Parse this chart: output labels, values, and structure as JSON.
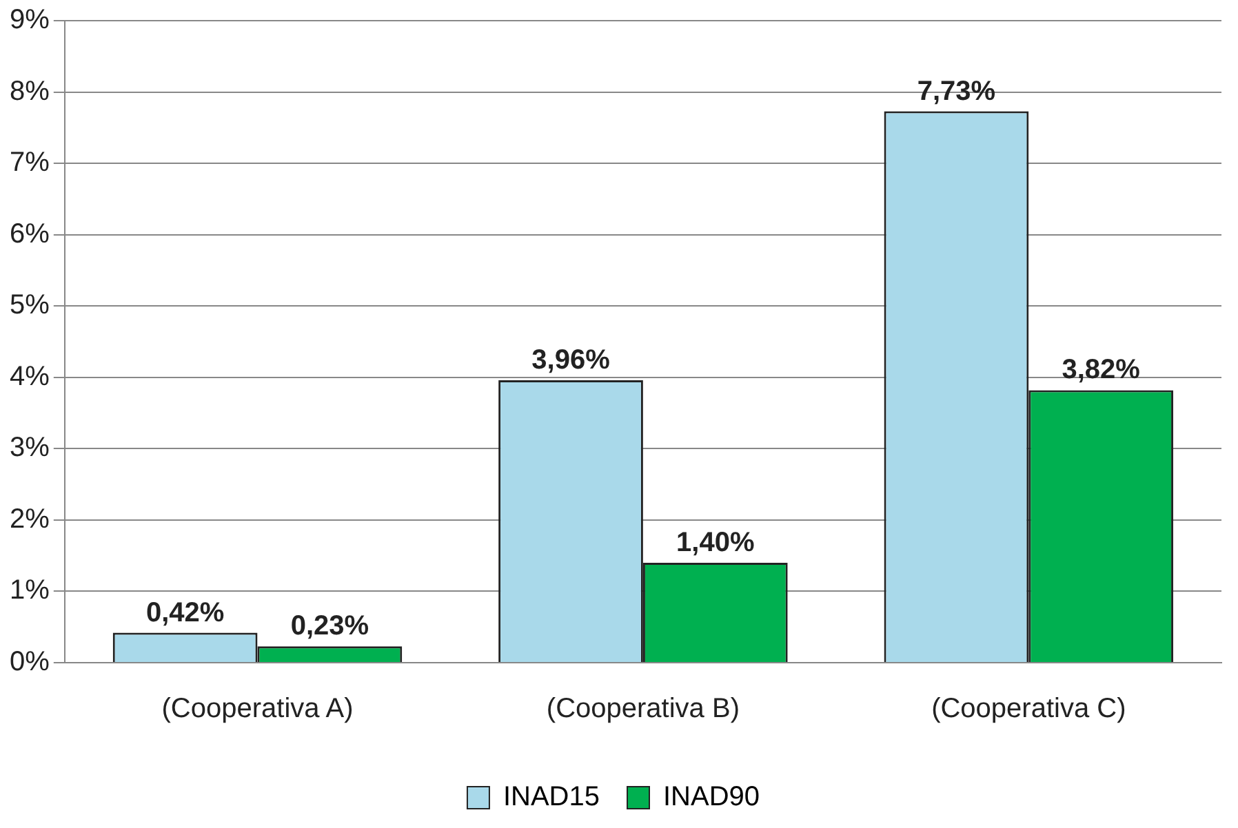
{
  "chart_data": {
    "type": "bar",
    "categories": [
      "(Cooperativa A)",
      "(Cooperativa B)",
      "(Cooperativa C)"
    ],
    "series": [
      {
        "name": "INAD15",
        "color": "#a9d9ea",
        "values": [
          0.42,
          3.96,
          7.73
        ],
        "value_labels": [
          "0,42%",
          "3,96%",
          "7,73%"
        ]
      },
      {
        "name": "INAD90",
        "color": "#00b050",
        "values": [
          0.23,
          1.4,
          3.82
        ],
        "value_labels": [
          "0,23%",
          "1,40%",
          "3,82%"
        ]
      }
    ],
    "ylim": [
      0,
      9
    ],
    "yticks": [
      {
        "value": 0,
        "label": "0%"
      },
      {
        "value": 1,
        "label": "1%"
      },
      {
        "value": 2,
        "label": "2%"
      },
      {
        "value": 3,
        "label": "3%"
      },
      {
        "value": 4,
        "label": "4%"
      },
      {
        "value": 5,
        "label": "5%"
      },
      {
        "value": 6,
        "label": "6%"
      },
      {
        "value": 7,
        "label": "7%"
      },
      {
        "value": 8,
        "label": "8%"
      },
      {
        "value": 9,
        "label": "9%"
      }
    ],
    "grid": "y",
    "legend": "bottom"
  }
}
